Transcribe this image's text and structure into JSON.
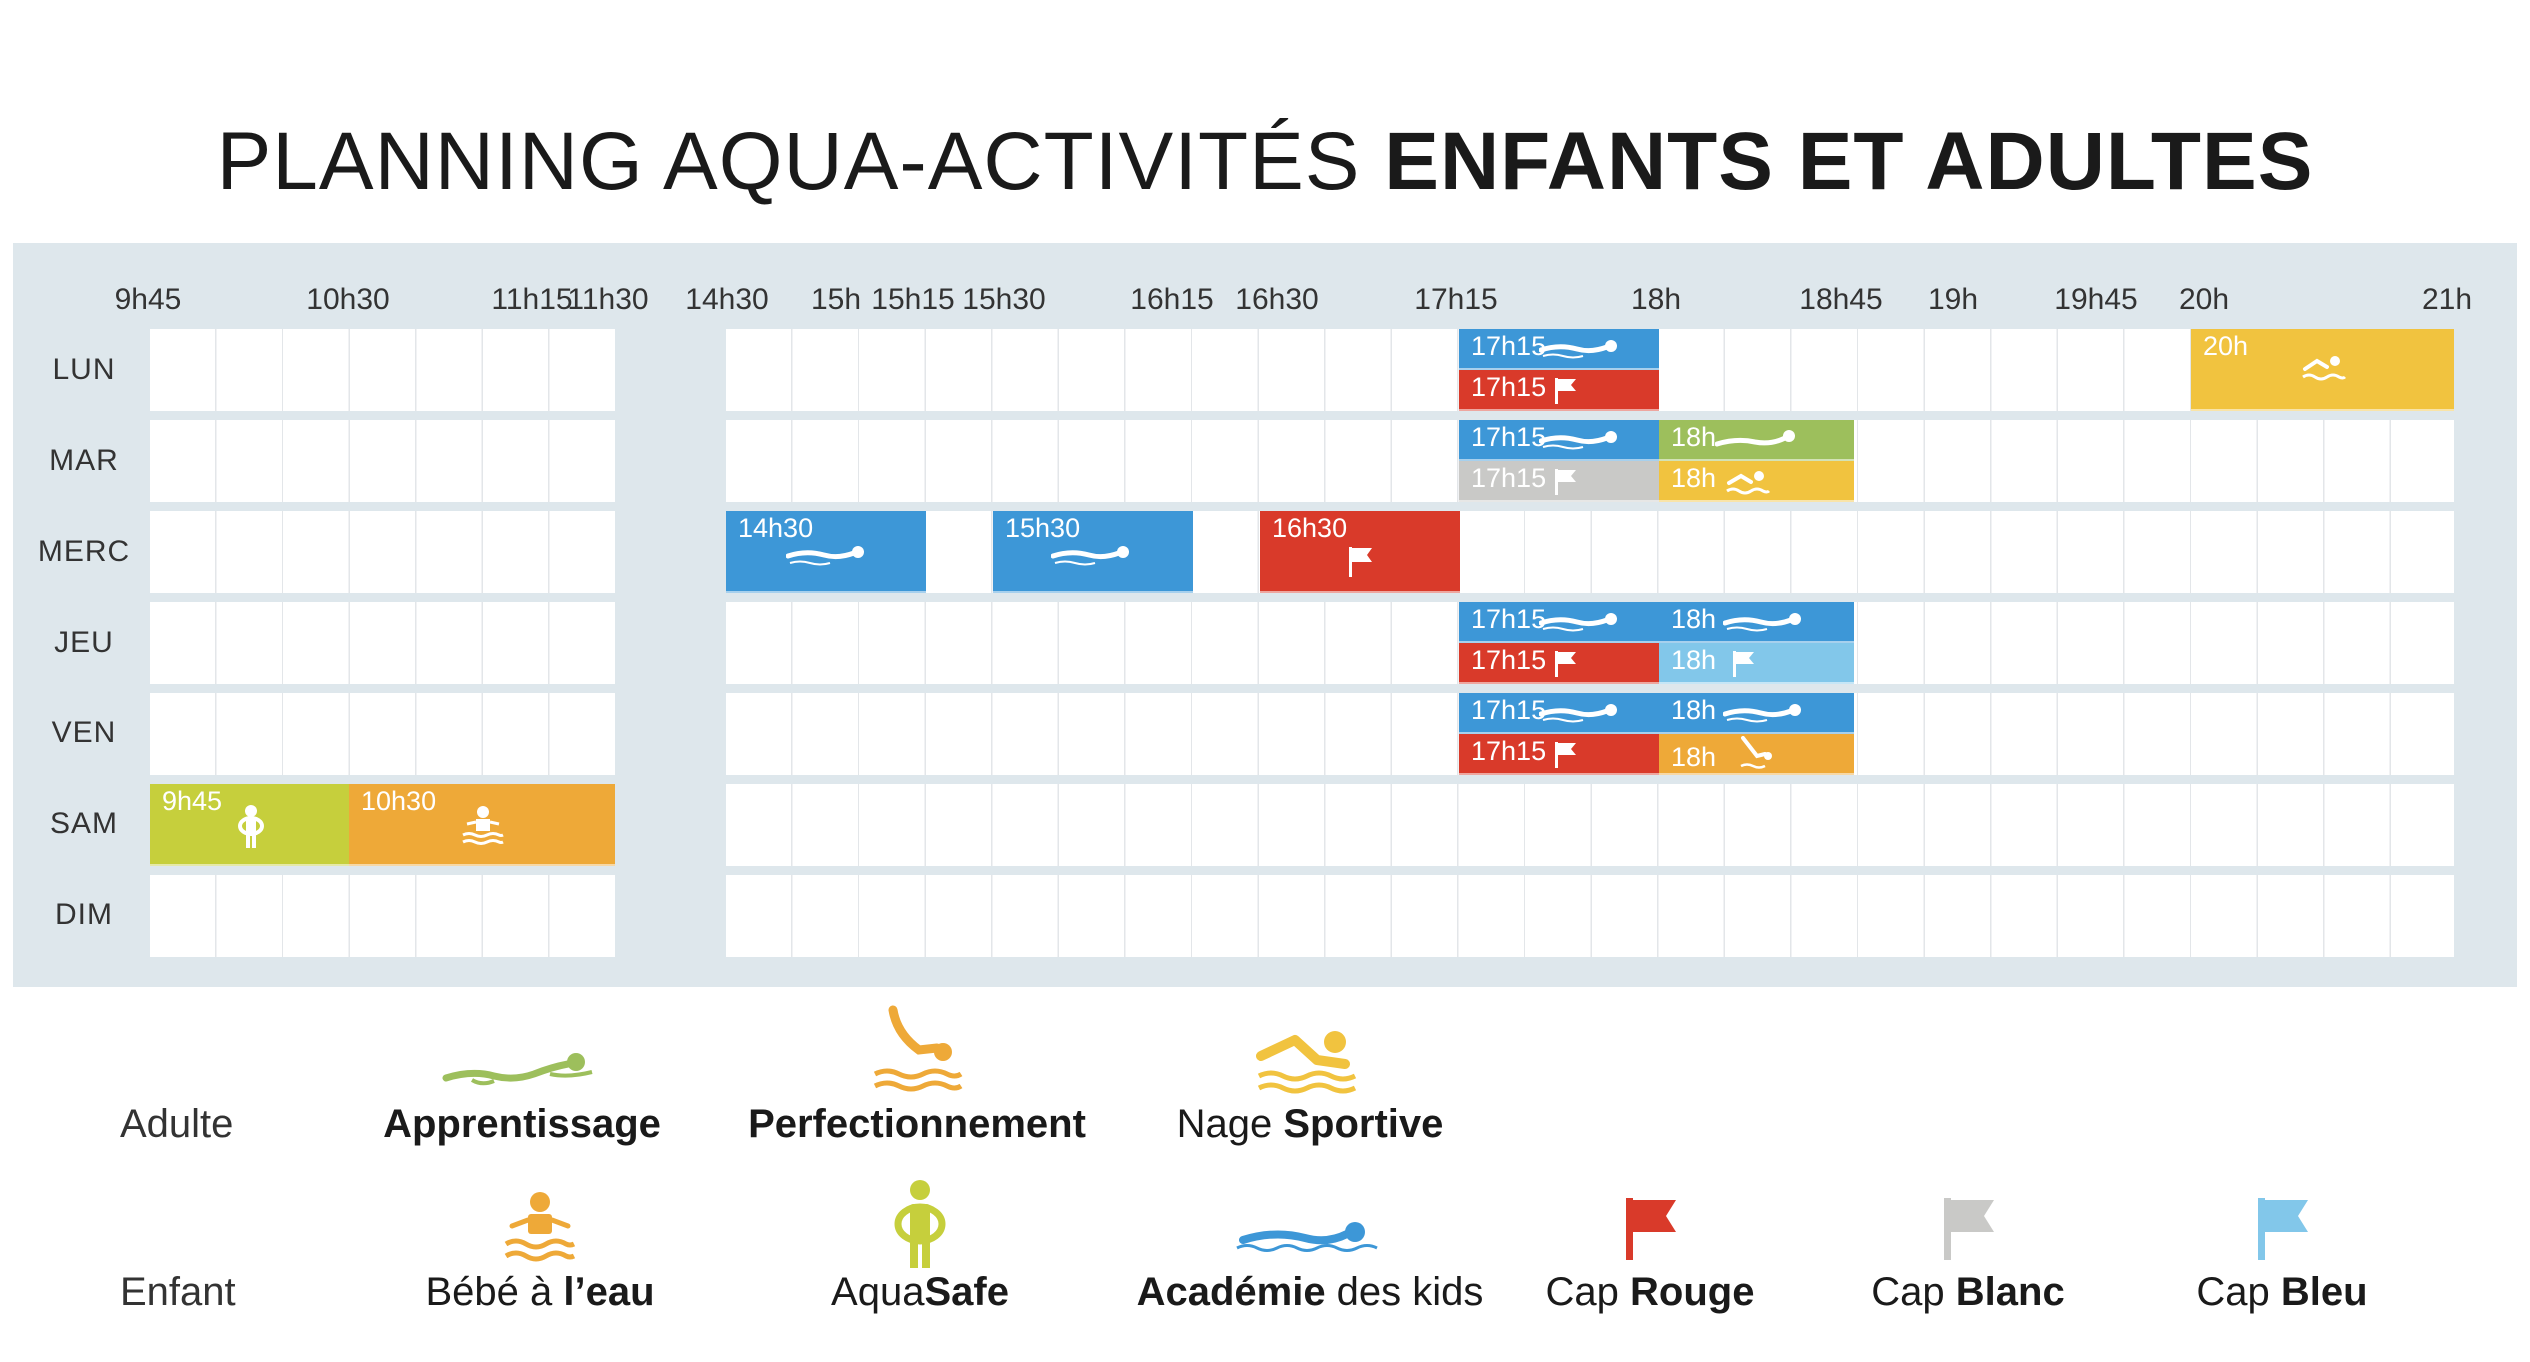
{
  "title": {
    "thin": "PLANNING AQUA-ACTIVITÉS ",
    "bold": "ENFANTS ET ADULTES"
  },
  "times": [
    "9h45",
    "10h30",
    "11h15",
    "11h30",
    "14h30",
    "15h",
    "15h15",
    "15h30",
    "16h15",
    "16h30",
    "17h15",
    "18h",
    "18h45",
    "19h",
    "19h45",
    "20h",
    "21h"
  ],
  "days": [
    "LUN",
    "MAR",
    "MERC",
    "JEU",
    "VEN",
    "SAM",
    "DIM"
  ],
  "sessions": [
    {
      "day": "LUN",
      "start": "17h15",
      "activity": "Académie des kids",
      "color": "#3d97d7"
    },
    {
      "day": "LUN",
      "start": "17h15",
      "activity": "Cap Rouge",
      "color": "#d93a2a"
    },
    {
      "day": "LUN",
      "start": "20h",
      "activity": "Nage Sportive",
      "color": "#f1c33f"
    },
    {
      "day": "MAR",
      "start": "17h15",
      "activity": "Académie des kids",
      "color": "#3d97d7"
    },
    {
      "day": "MAR",
      "start": "17h15",
      "activity": "Cap Blanc",
      "color": "#c9c9c7"
    },
    {
      "day": "MAR",
      "start": "18h",
      "activity": "Apprentissage",
      "color": "#9dbf5c"
    },
    {
      "day": "MAR",
      "start": "18h",
      "activity": "Nage Sportive",
      "color": "#f1c33f"
    },
    {
      "day": "MERC",
      "start": "14h30",
      "activity": "Académie des kids",
      "color": "#3d97d7"
    },
    {
      "day": "MERC",
      "start": "15h30",
      "activity": "Académie des kids",
      "color": "#3d97d7"
    },
    {
      "day": "MERC",
      "start": "16h30",
      "activity": "Cap Rouge",
      "color": "#d93a2a"
    },
    {
      "day": "JEU",
      "start": "17h15",
      "activity": "Académie des kids",
      "color": "#3d97d7"
    },
    {
      "day": "JEU",
      "start": "18h",
      "activity": "Académie des kids",
      "color": "#3d97d7"
    },
    {
      "day": "JEU",
      "start": "17h15",
      "activity": "Cap Rouge",
      "color": "#d93a2a"
    },
    {
      "day": "JEU",
      "start": "18h",
      "activity": "Cap Bleu",
      "color": "#82c7ea"
    },
    {
      "day": "VEN",
      "start": "17h15",
      "activity": "Académie des kids",
      "color": "#3d97d7"
    },
    {
      "day": "VEN",
      "start": "18h",
      "activity": "Académie des kids",
      "color": "#3d97d7"
    },
    {
      "day": "VEN",
      "start": "17h15",
      "activity": "Cap Rouge",
      "color": "#d93a2a"
    },
    {
      "day": "VEN",
      "start": "18h",
      "activity": "Perfectionnement",
      "color": "#eea938"
    },
    {
      "day": "SAM",
      "start": "9h45",
      "activity": "AquaSafe",
      "color": "#c6cf3c"
    },
    {
      "day": "SAM",
      "start": "10h30",
      "activity": "Bébé à l'eau",
      "color": "#eea938"
    }
  ],
  "legend": {
    "adulte_label": "Adulte",
    "enfant_label": "Enfant",
    "adulte": [
      {
        "bold": "Apprentissage",
        "thin": "",
        "icon": "apprentissage-swimmer-icon",
        "color": "#9dbf5c"
      },
      {
        "bold": "Perfectionnement",
        "thin": "",
        "icon": "diver-icon",
        "color": "#eea938"
      },
      {
        "thin": "Nage ",
        "bold": "Sportive",
        "icon": "freestyle-swimmer-icon",
        "color": "#f1c33f"
      }
    ],
    "enfant": [
      {
        "thin": "Bébé à ",
        "bold": "l’eau",
        "icon": "baby-in-water-icon",
        "color": "#eea938"
      },
      {
        "thin": "Aqua",
        "bold": "Safe",
        "icon": "child-with-ring-icon",
        "color": "#c6cf3c"
      },
      {
        "bold": "Académie",
        "thin": " des kids",
        "icon": "kids-swimmer-icon",
        "color": "#3d97d7"
      },
      {
        "thin": "Cap ",
        "bold": "Rouge",
        "icon": "red-flag-icon",
        "color": "#d93a2a"
      },
      {
        "thin": "Cap ",
        "bold": "Blanc",
        "icon": "white-flag-icon",
        "color": "#c9c9c7"
      },
      {
        "thin": "Cap ",
        "bold": "Bleu",
        "icon": "blue-flag-icon",
        "color": "#82c7ea"
      }
    ]
  }
}
